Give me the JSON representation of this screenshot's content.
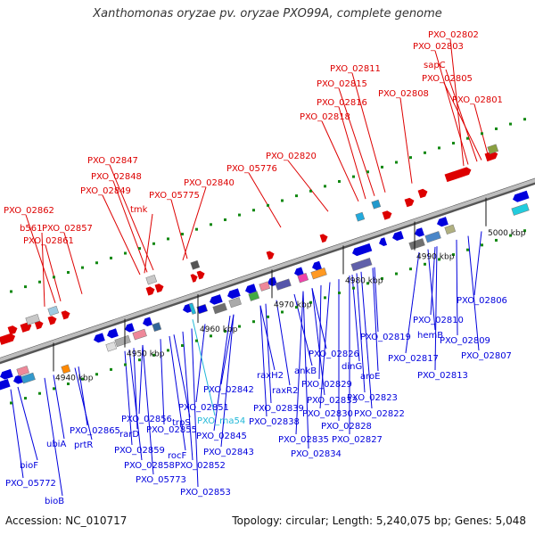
{
  "title": "Xanthomonas oryzae pv. oryzae PXO99A, complete genome",
  "footer": {
    "accession": "Accession: NC_010717",
    "topology": "Topology: circular; Length: 5,240,075 bp; Genes: 5,048"
  },
  "colors": {
    "forward": "#dd0000",
    "reverse": "#0000dd",
    "rna": "#22b8d8",
    "backbone": "#8c8c8c",
    "tick": "#118811"
  },
  "ticks": [
    "4940 kbp",
    "4950 kbp",
    "4960 kbp",
    "4970 kbp",
    "4980 kbp",
    "4990 kbp",
    "5000 kbp"
  ],
  "forward_labels": [
    "PXO_02802",
    "PXO_02803",
    "sapC",
    "PXO_02805",
    "PXO_02801",
    "PXO_02811",
    "PXO_02815",
    "PXO_02808",
    "PXO_02816",
    "PXO_02818",
    "PXO_02820",
    "PXO_05776",
    "PXO_02847",
    "PXO_02848",
    "PXO_02849",
    "PXO_02840",
    "PXO_05775",
    "tmk",
    "PXO_02862",
    "b561",
    "PXO_02857",
    "PXO_02861"
  ],
  "reverse_labels": [
    "PXO_02806",
    "PXO_02810",
    "hemB",
    "PXO_02809",
    "PXO_02807",
    "PXO_02819",
    "PXO_02817",
    "PXO_02813",
    "aroE",
    "dinG",
    "PXO_02826",
    "PXO_02823",
    "ankB",
    "PXO_02829",
    "PXO_02822",
    "raxH2",
    "raxR2",
    "PXO_02833",
    "PXO_02830",
    "PXO_02828",
    "PXO_02839",
    "PXO_02838",
    "PXO_02842",
    "PXO_02835",
    "PXO_02827",
    "PXO_02834",
    "PXO_02845",
    "PXO_02843",
    "PXO_02851",
    "PXO_02856",
    "trpS",
    "PXO_02865",
    "prtR",
    "rarD",
    "PXO_02855",
    "ubiA",
    "PXO_02859",
    "rocF",
    "PXO_02858",
    "PXO_02852",
    "PXO_05773",
    "PXO_02853",
    "bioF",
    "PXO_05772",
    "bioB"
  ],
  "rna_labels": [
    "PXO_rna54"
  ]
}
